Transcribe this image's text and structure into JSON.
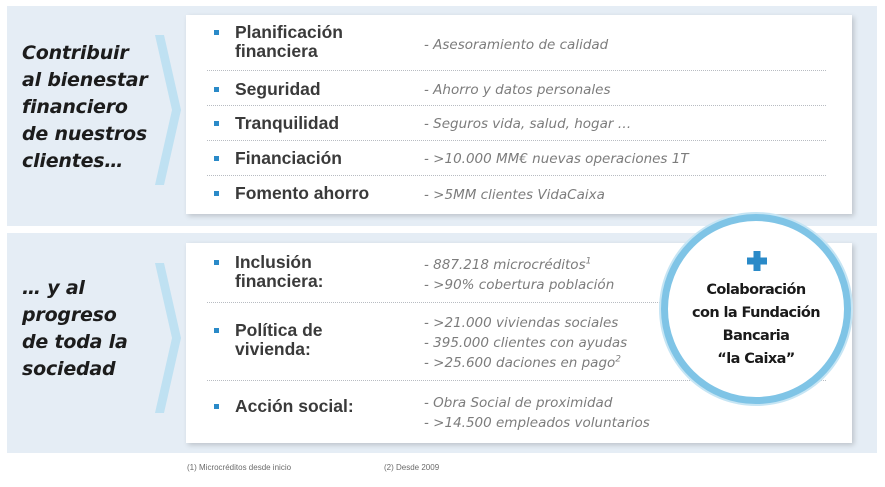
{
  "left_panel": {
    "top": [
      "Contribuir",
      "al bienestar",
      "financiero",
      "de nuestros",
      "clientes…"
    ],
    "bottom": [
      "… y al",
      "progreso",
      "de toda la",
      "sociedad"
    ]
  },
  "top_rows": [
    {
      "label": [
        "Planificación",
        "financiera"
      ],
      "desc": [
        "- Asesoramiento de calidad"
      ]
    },
    {
      "label": [
        "Seguridad"
      ],
      "desc": [
        "- Ahorro y datos personales"
      ]
    },
    {
      "label": [
        "Tranquilidad"
      ],
      "desc": [
        "- Seguros vida, salud, hogar …"
      ]
    },
    {
      "label": [
        "Financiación"
      ],
      "desc": [
        "- >10.000 MM€ nuevas operaciones 1T"
      ]
    },
    {
      "label": [
        "Fomento ahorro"
      ],
      "desc": [
        "- >5MM clientes VidaCaixa"
      ]
    }
  ],
  "bottom_rows": [
    {
      "label": [
        "Inclusión",
        "financiera:"
      ],
      "desc": [
        "- 887.218 microcréditos",
        "- >90% cobertura población"
      ],
      "sup": [
        "1",
        ""
      ]
    },
    {
      "label": [
        "Política de",
        "vivienda:"
      ],
      "desc": [
        "- >21.000 viviendas sociales",
        "- 395.000 clientes con ayudas",
        "- >25.600 daciones en pago"
      ],
      "sup": [
        "",
        "",
        "2"
      ]
    },
    {
      "label": [
        "Acción social:"
      ],
      "desc": [
        "- Obra Social de proximidad",
        "- >14.500 empleados voluntarios"
      ],
      "sup": [
        "",
        ""
      ]
    }
  ],
  "seal": {
    "lines": [
      "Colaboración",
      "con la Fundación",
      "Bancaria",
      "“la Caixa”"
    ],
    "icon": "plus-icon"
  },
  "footnotes": [
    "(1) Microcréditos  desde inicio",
    "(2) Desde  2009"
  ],
  "colors": {
    "band": "#e5edf5",
    "accent_blue": "#2a8ac8",
    "ring": "#7fc4e6",
    "chevron": "#bfe1f2"
  }
}
